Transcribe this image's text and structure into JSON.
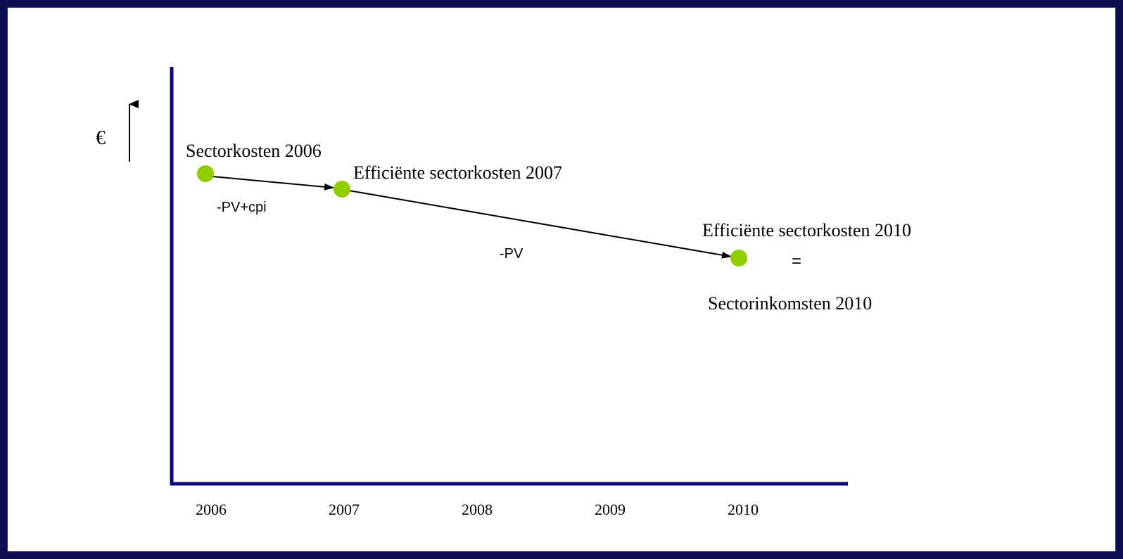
{
  "colors": {
    "axis": "#0a0a78",
    "point": "#8fcc00",
    "arrow": "#000000",
    "frame": "#0d0d4f"
  },
  "y_axis": {
    "unit_label": "€",
    "direction_icon": "arrow-up-icon"
  },
  "x_axis": {
    "ticks": [
      "2006",
      "2007",
      "2008",
      "2009",
      "2010"
    ]
  },
  "points": [
    {
      "id": "p2006",
      "label": "Sectorkosten 2006"
    },
    {
      "id": "p2007",
      "label": "Efficiënte sectorkosten 2007"
    },
    {
      "id": "p2010",
      "label": "Efficiënte sectorkosten 2010"
    }
  ],
  "transitions": [
    {
      "from": "p2006",
      "to": "p2007",
      "label": "-PV+cpi"
    },
    {
      "from": "p2007",
      "to": "p2010",
      "label": "-PV"
    }
  ],
  "equivalence": {
    "symbol": "=",
    "label": "Sectorinkomsten 2010"
  }
}
